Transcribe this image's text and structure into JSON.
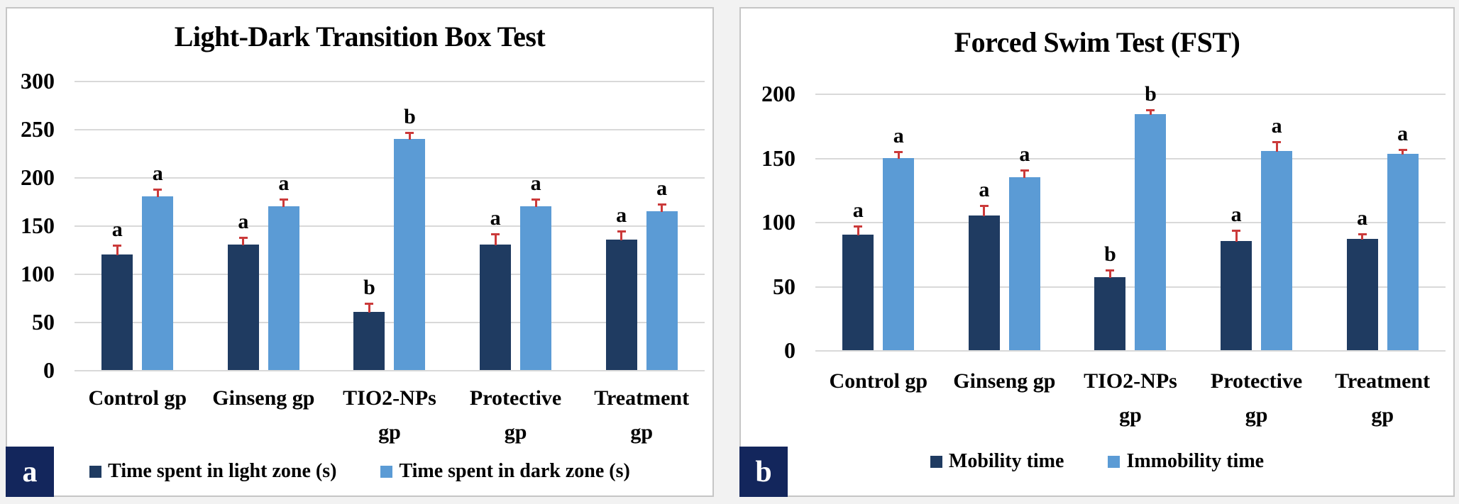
{
  "colors": {
    "series_dark": "#1f3b61",
    "series_light": "#5b9bd5",
    "error_bar": "#cb3a3a",
    "panel_badge": "#13265c",
    "gridline": "#d9d9d9"
  },
  "chart_data": [
    {
      "type": "bar",
      "panel_label": "a",
      "title": "Light-Dark Transition Box Test",
      "categories": [
        "Control gp",
        "Ginseng gp",
        "TIO2-NPs gp",
        "Protective gp",
        "Treatment gp"
      ],
      "category_lines": [
        [
          "Control gp"
        ],
        [
          "Ginseng gp"
        ],
        [
          "TIO2-NPs",
          "gp"
        ],
        [
          "Protective",
          "gp"
        ],
        [
          "Treatment",
          "gp"
        ]
      ],
      "series": [
        {
          "name": "Time spent in light zone (s)",
          "color": "#1f3b61",
          "values": [
            120,
            130,
            60,
            130,
            135
          ],
          "errors": [
            10,
            8,
            10,
            12,
            10
          ],
          "sig_letters": [
            "a",
            "a",
            "b",
            "a",
            "a"
          ]
        },
        {
          "name": "Time spent in dark zone (s)",
          "color": "#5b9bd5",
          "values": [
            180,
            170,
            240,
            170,
            165
          ],
          "errors": [
            8,
            8,
            7,
            8,
            8
          ],
          "sig_letters": [
            "a",
            "a",
            "b",
            "a",
            "a"
          ]
        }
      ],
      "xlabel": "",
      "ylabel": "",
      "ylim": [
        0,
        300
      ],
      "ytick_step": 50,
      "grid": true,
      "legend_position": "bottom",
      "error_bar_color": "#cb3a3a"
    },
    {
      "type": "bar",
      "panel_label": "b",
      "title": "Forced Swim Test (FST)",
      "categories": [
        "Control gp",
        "Ginseng gp",
        "TIO2-NPs gp",
        "Protective gp",
        "Treatment gp"
      ],
      "category_lines": [
        [
          "Control gp"
        ],
        [
          "Ginseng gp"
        ],
        [
          "TIO2-NPs",
          "gp"
        ],
        [
          "Protective",
          "gp"
        ],
        [
          "Treatment",
          "gp"
        ]
      ],
      "series": [
        {
          "name": "Mobility time",
          "color": "#1f3b61",
          "values": [
            90,
            105,
            57,
            85,
            87
          ],
          "errors": [
            7,
            8,
            6,
            9,
            4
          ],
          "sig_letters": [
            "a",
            "a",
            "b",
            "a",
            "a"
          ]
        },
        {
          "name": "Immobility time",
          "color": "#5b9bd5",
          "values": [
            150,
            135,
            184,
            155,
            153
          ],
          "errors": [
            5,
            6,
            4,
            8,
            4
          ],
          "sig_letters": [
            "a",
            "a",
            "b",
            "a",
            "a"
          ]
        }
      ],
      "xlabel": "",
      "ylabel": "",
      "ylim": [
        0,
        200
      ],
      "ytick_step": 50,
      "grid": true,
      "legend_position": "bottom",
      "error_bar_color": "#cb3a3a"
    }
  ]
}
